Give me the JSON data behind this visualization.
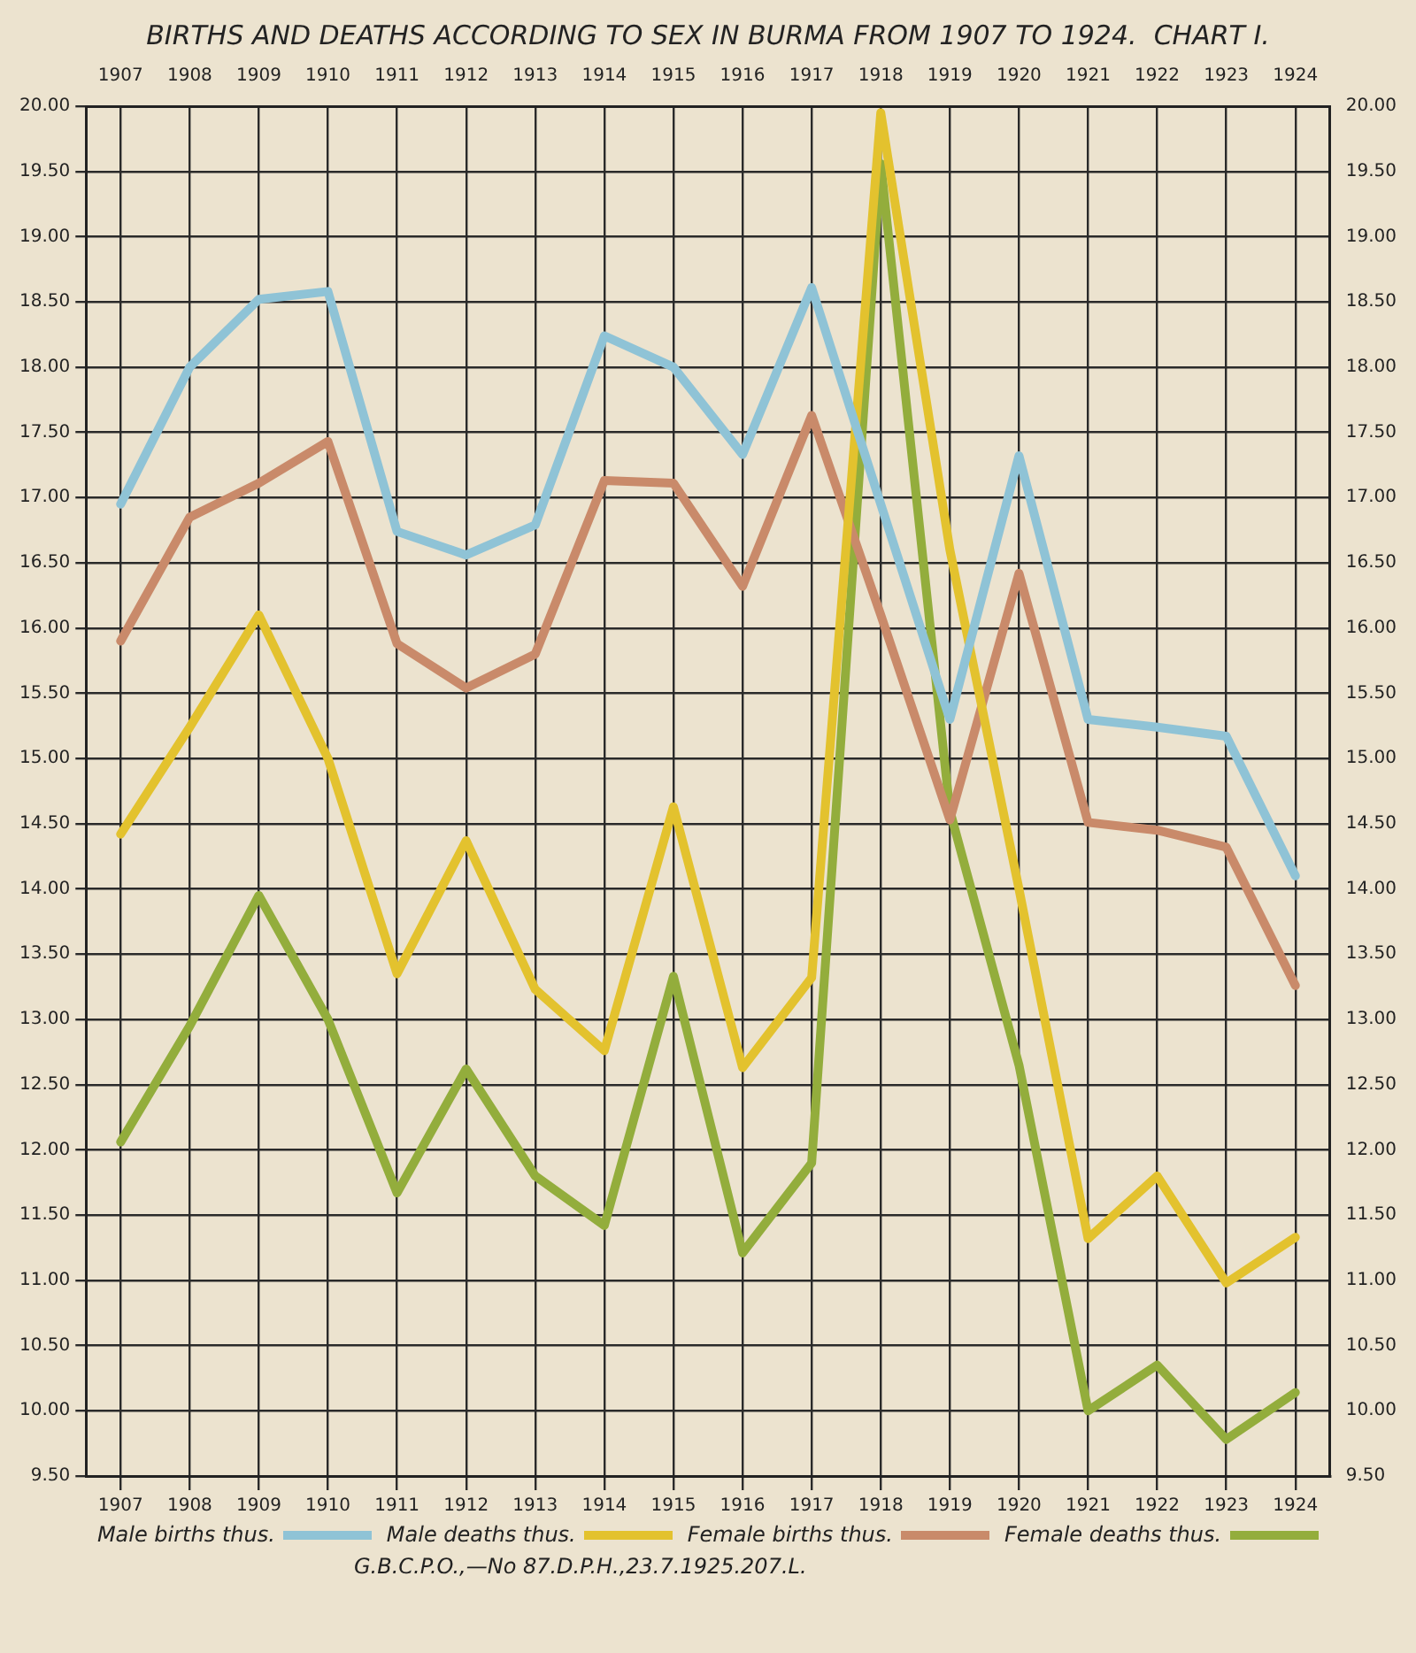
{
  "chart_data": {
    "type": "line",
    "title": "BIRTHS AND DEATHS ACCORDING TO SEX IN BURMA FROM 1907 TO 1924.  CHART I.",
    "categories": [
      "1907",
      "1908",
      "1909",
      "1910",
      "1911",
      "1912",
      "1913",
      "1914",
      "1915",
      "1916",
      "1917",
      "1918",
      "1919",
      "1920",
      "1921",
      "1922",
      "1923",
      "1924"
    ],
    "series": [
      {
        "name": "Male births thus.",
        "color": "#8fc3d6",
        "values": [
          16.95,
          18.0,
          18.52,
          18.58,
          16.74,
          16.56,
          16.79,
          18.24,
          18.0,
          17.33,
          18.61,
          16.95,
          15.3,
          17.32,
          15.3,
          15.24,
          15.17,
          14.1
        ]
      },
      {
        "name": "Male deaths thus.",
        "color": "#e3c22e",
        "values": [
          14.42,
          15.24,
          16.1,
          15.0,
          13.35,
          14.37,
          13.23,
          12.76,
          14.63,
          12.63,
          13.32,
          19.95,
          16.6,
          14.0,
          11.32,
          11.8,
          10.98,
          11.33
        ]
      },
      {
        "name": "Female births thus.",
        "color": "#c98a6a",
        "values": [
          15.9,
          16.85,
          17.11,
          17.43,
          15.88,
          15.54,
          15.8,
          17.13,
          17.11,
          16.32,
          17.63,
          16.1,
          14.53,
          16.42,
          14.51,
          14.45,
          14.32,
          13.26
        ]
      },
      {
        "name": "Female deaths thus.",
        "color": "#93ad3c",
        "values": [
          12.06,
          12.95,
          13.95,
          13.0,
          11.67,
          12.62,
          11.8,
          11.42,
          13.33,
          11.21,
          11.9,
          19.56,
          14.6,
          12.65,
          10.0,
          10.35,
          9.78,
          10.14
        ]
      }
    ],
    "ylim": [
      9.5,
      20
    ],
    "yticks": [
      {
        "value": 9.5,
        "label": "9.50"
      },
      {
        "value": 10,
        "label": "10.00"
      },
      {
        "value": 10.5,
        "label": "10.50"
      },
      {
        "value": 11,
        "label": "11.00"
      },
      {
        "value": 11.5,
        "label": "11.50"
      },
      {
        "value": 12,
        "label": "12.00"
      },
      {
        "value": 12.5,
        "label": "12.50"
      },
      {
        "value": 13,
        "label": "13.00"
      },
      {
        "value": 13.5,
        "label": "13.50"
      },
      {
        "value": 14,
        "label": "14.00"
      },
      {
        "value": 14.5,
        "label": "14.50"
      },
      {
        "value": 15,
        "label": "15.00"
      },
      {
        "value": 15.5,
        "label": "15.50"
      },
      {
        "value": 16,
        "label": "16.00"
      },
      {
        "value": 16.5,
        "label": "16.50"
      },
      {
        "value": 17,
        "label": "17.00"
      },
      {
        "value": 17.5,
        "label": "17.50"
      },
      {
        "value": 18,
        "label": "18.00"
      },
      {
        "value": 18.5,
        "label": "18.50"
      },
      {
        "value": 19,
        "label": "19.00"
      },
      {
        "value": 19.5,
        "label": "19.50"
      },
      {
        "value": 20,
        "label": "20.00"
      }
    ],
    "y2lim": [
      9.5,
      20
    ],
    "y2ticks": [
      {
        "value": 9.5,
        "label": "9.50"
      },
      {
        "value": 10,
        "label": "10.00"
      },
      {
        "value": 10.5,
        "label": "10.50"
      },
      {
        "value": 11,
        "label": "11.00"
      },
      {
        "value": 11.5,
        "label": "11.50"
      },
      {
        "value": 12,
        "label": "12.00"
      },
      {
        "value": 12.5,
        "label": "12.50"
      },
      {
        "value": 13,
        "label": "13.00"
      },
      {
        "value": 13.5,
        "label": "13.50"
      },
      {
        "value": 14,
        "label": "14.00"
      },
      {
        "value": 14.5,
        "label": "14.50"
      },
      {
        "value": 15,
        "label": "15.00"
      },
      {
        "value": 15.5,
        "label": "15.50"
      },
      {
        "value": 16,
        "label": "16.00"
      },
      {
        "value": 16.5,
        "label": "16.50"
      },
      {
        "value": 17,
        "label": "17.00"
      },
      {
        "value": 17.5,
        "label": "17.50"
      },
      {
        "value": 18,
        "label": "18.00"
      },
      {
        "value": 18.5,
        "label": "18.50"
      },
      {
        "value": 19,
        "label": "19.00"
      },
      {
        "value": 19.5,
        "label": "19.50"
      },
      {
        "value": 20,
        "label": "20.00"
      }
    ],
    "grid": true,
    "legend": "bottom",
    "marker": "none",
    "line_style": "solid",
    "annotations": [
      "G.B.C.P.O.,—No 87.D.P.H.,23.7.1925.207.L."
    ]
  }
}
